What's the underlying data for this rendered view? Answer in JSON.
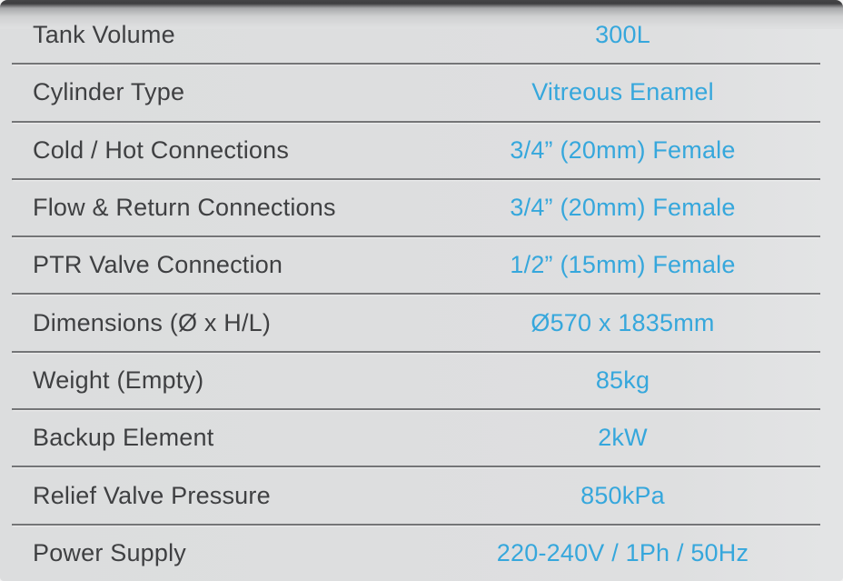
{
  "table": {
    "rows": [
      {
        "label": "Tank Volume",
        "value": "300L"
      },
      {
        "label": "Cylinder Type",
        "value": "Vitreous Enamel"
      },
      {
        "label": "Cold / Hot Connections",
        "value": "3/4” (20mm) Female"
      },
      {
        "label": "Flow & Return Connections",
        "value": "3/4” (20mm) Female"
      },
      {
        "label": "PTR Valve Connection",
        "value": "1/2” (15mm) Female"
      },
      {
        "label": "Dimensions (Ø x H/L)",
        "value": "Ø570 x 1835mm"
      },
      {
        "label": "Weight (Empty)",
        "value": "85kg"
      },
      {
        "label": "Backup Element",
        "value": "2kW"
      },
      {
        "label": "Relief Valve Pressure",
        "value": "850kPa"
      },
      {
        "label": "Power Supply",
        "value": "220-240V / 1Ph / 50Hz"
      }
    ],
    "colors": {
      "value_text": "#36a7dc",
      "label_text": "#3f4042",
      "row_divider": "#747577",
      "background": "#dedfe0"
    }
  }
}
